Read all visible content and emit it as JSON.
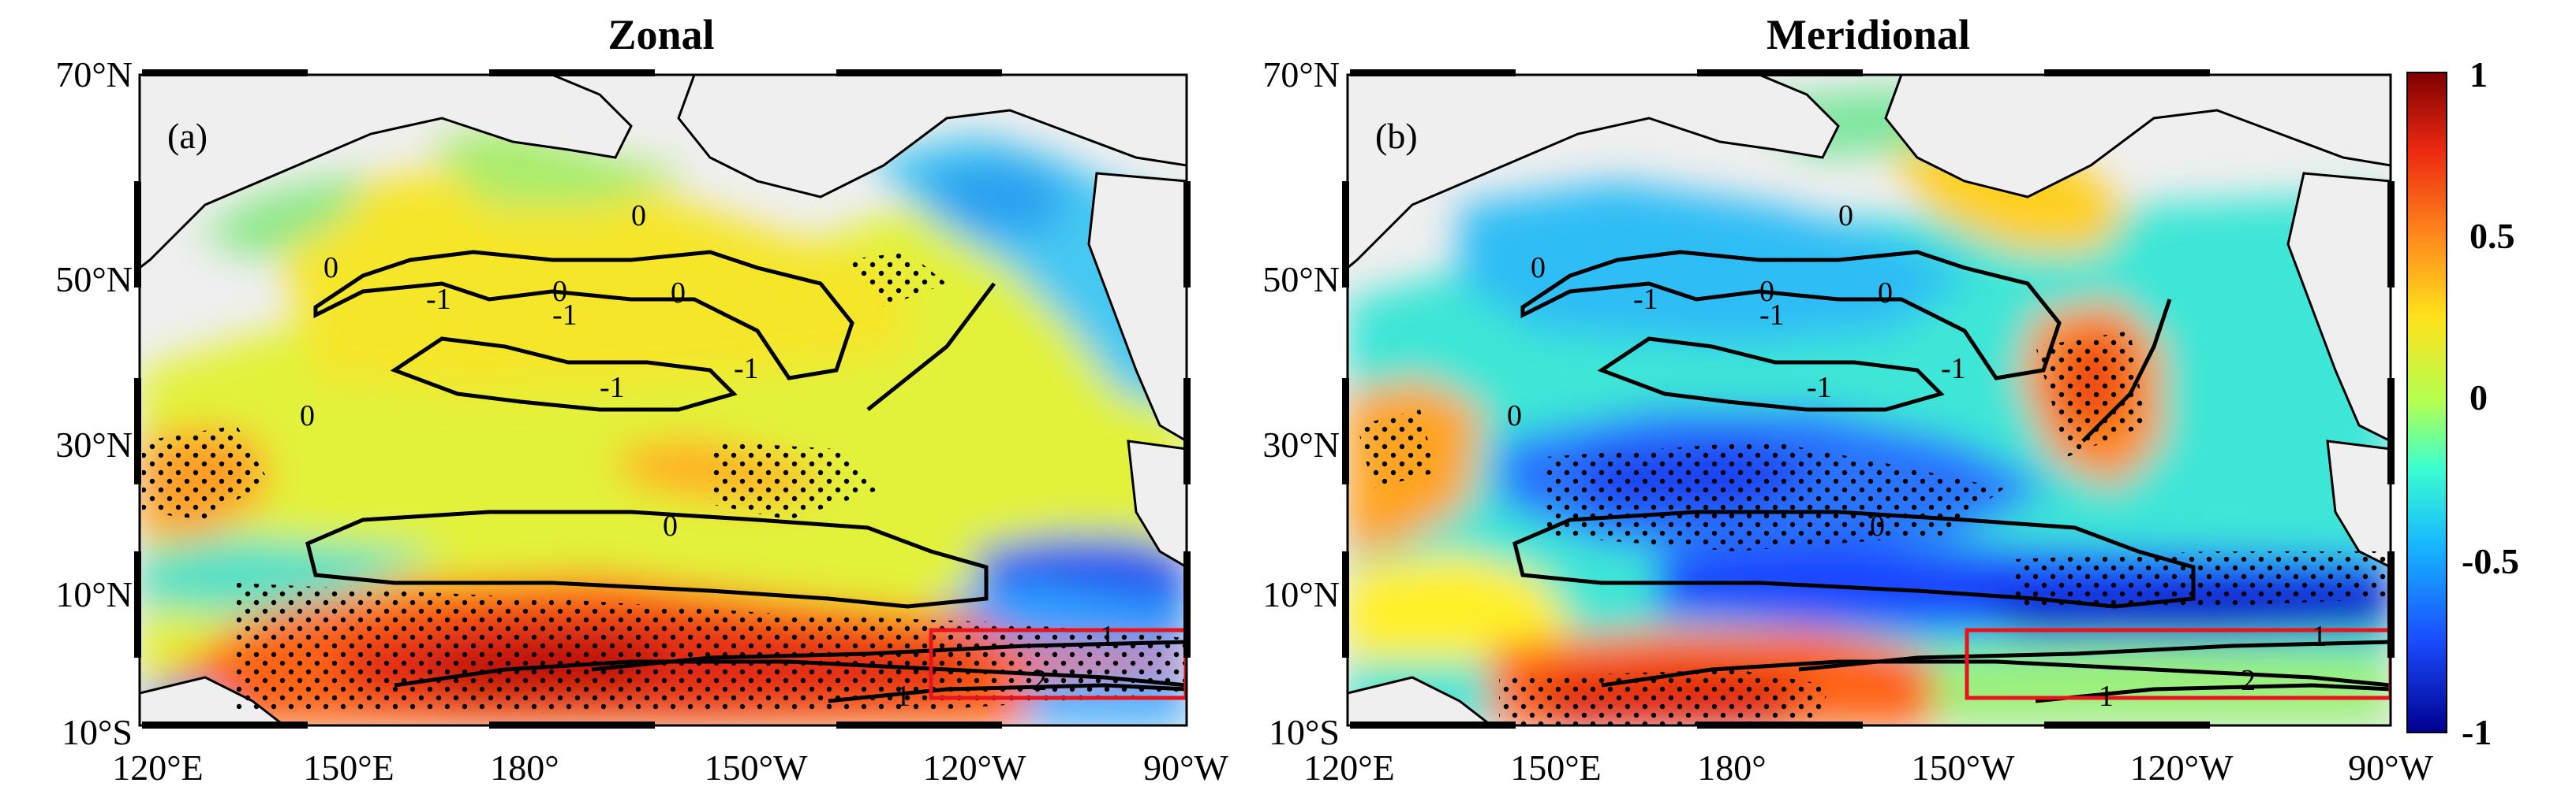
{
  "panels": [
    {
      "id": "zonal",
      "title": "Zonal",
      "label": "(a)",
      "box_label_primary": "1",
      "box_label_secondary": "2",
      "box_label_line": "1",
      "contour_labels": [
        "-1",
        "-1",
        "-1",
        "-1",
        "0",
        "0",
        "0",
        "0",
        "0",
        "0",
        "1",
        "1",
        "2"
      ]
    },
    {
      "id": "meridional",
      "title": "Meridional",
      "label": "(b)",
      "box_label_primary": "1",
      "box_label_secondary": "2",
      "box_label_line": "1",
      "contour_labels": [
        "-1",
        "-1",
        "-1",
        "-1",
        "0",
        "0",
        "0",
        "0",
        "0",
        "0",
        "1",
        "1",
        "2"
      ]
    }
  ],
  "axes": {
    "lat_ticks": [
      "70°N",
      "50°N",
      "30°N",
      "10°N",
      "10°S"
    ],
    "lon_ticks": [
      "120°E",
      "150°E",
      "180°",
      "150°W",
      "120°W",
      "90°W"
    ],
    "lat_range": [
      -10,
      70
    ],
    "lon_range": [
      120,
      270
    ]
  },
  "colorbar": {
    "ticks": [
      "1",
      "0.5",
      "0",
      "-0.5",
      "-1"
    ],
    "range": [
      -1,
      1
    ],
    "colormap": "jet"
  },
  "colors": {
    "land": "#efefef",
    "box": "#e8141c",
    "contour": "#000000"
  }
}
